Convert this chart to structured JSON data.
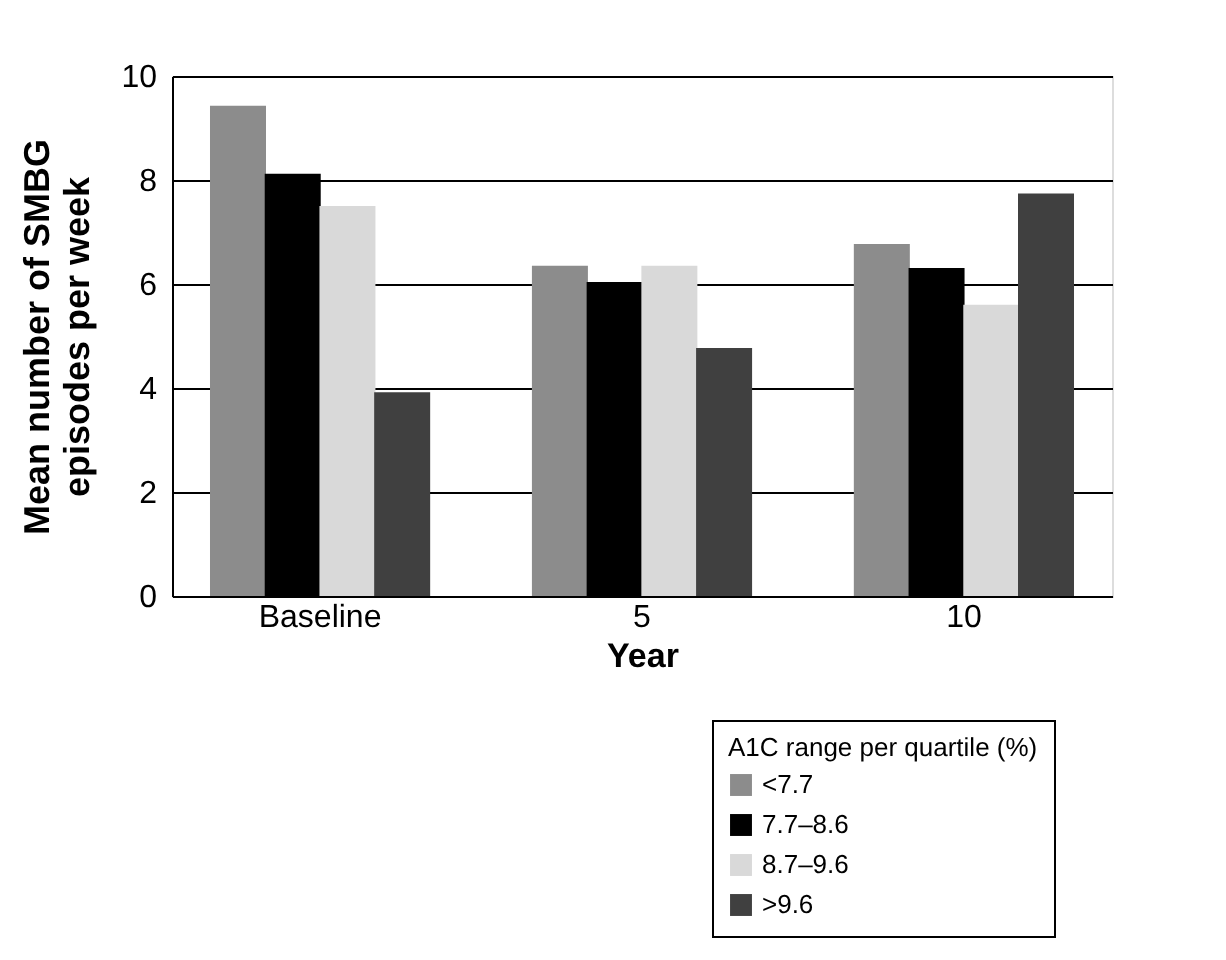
{
  "chart_data": {
    "type": "bar",
    "xlabel": "Year",
    "ylabel": "Mean number of SMBG episodes per week",
    "legend_title": "A1C range per quartile (%)",
    "categories": [
      "Baseline",
      "5",
      "10"
    ],
    "series": [
      {
        "name": "<7.7",
        "color": "#8c8c8c",
        "values": [
          9.43,
          6.35,
          6.77
        ]
      },
      {
        "name": "7.7–8.6",
        "color": "#000000",
        "values": [
          8.12,
          6.04,
          6.31
        ]
      },
      {
        "name": "8.7–9.6",
        "color": "#d9d9d9",
        "values": [
          7.5,
          6.35,
          5.6
        ]
      },
      {
        "name": ">9.6",
        "color": "#404040",
        "values": [
          3.92,
          4.77,
          7.74
        ]
      }
    ],
    "ylim": [
      0,
      10
    ],
    "yticks": [
      0,
      2,
      4,
      6,
      8,
      10
    ],
    "grid": "y",
    "legend": "bottom right"
  }
}
